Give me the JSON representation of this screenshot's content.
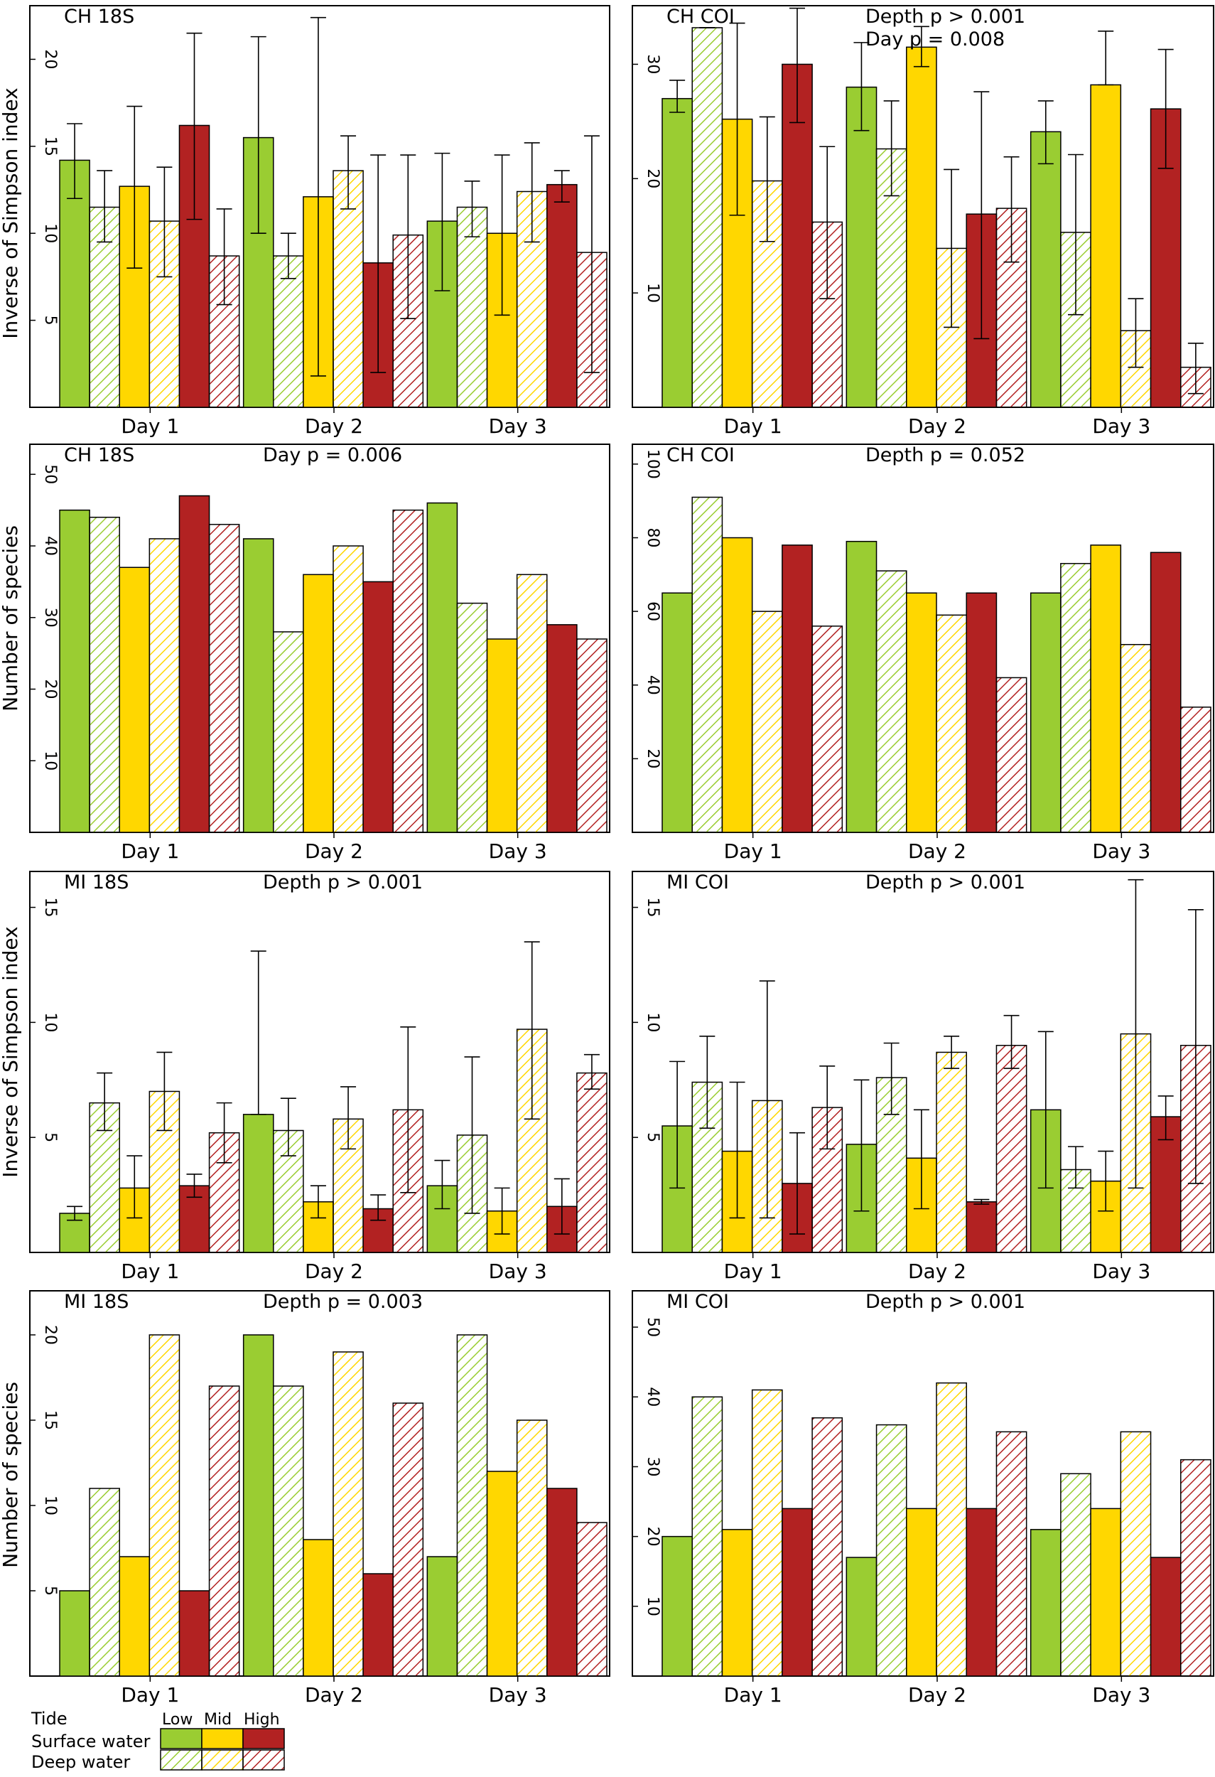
{
  "colors": {
    "low": "#9acd32",
    "mid": "#ffd700",
    "high": "#b22222",
    "background": "#ffffff",
    "axis": "#000000"
  },
  "legend": {
    "tide_label": "Tide",
    "low_label": "Low",
    "mid_label": "Mid",
    "high_label": "High",
    "surface_label": "Surface water",
    "deep_label": "Deep water"
  },
  "ylabels": {
    "simpson": "Inverse of Simpson index",
    "species": "Number of species"
  },
  "chart_data": [
    {
      "id": "ch18s-simpson",
      "type": "bar",
      "title": "CH 18S",
      "stats": [],
      "ylabel": "Inverse of Simpson index",
      "ylim": [
        0,
        23
      ],
      "ticks": [
        5,
        10,
        15,
        20
      ],
      "categories": [
        "Day 1",
        "Day 2",
        "Day 3"
      ],
      "series_order": [
        "Low surface",
        "Low deep",
        "Mid surface",
        "Mid deep",
        "High surface",
        "High deep"
      ],
      "values": [
        [
          14.2,
          11.5,
          12.7,
          10.7,
          16.2,
          8.7
        ],
        [
          15.5,
          8.7,
          12.1,
          13.6,
          8.3,
          9.9
        ],
        [
          10.7,
          11.5,
          10.0,
          12.4,
          12.8,
          8.9
        ]
      ],
      "error_low": [
        [
          12.0,
          9.5,
          8.0,
          7.5,
          10.8,
          5.9
        ],
        [
          10.0,
          7.4,
          1.8,
          11.4,
          2.0,
          5.1
        ],
        [
          6.7,
          9.8,
          5.3,
          9.5,
          11.8,
          2.0
        ]
      ],
      "error_high": [
        [
          16.3,
          13.6,
          17.3,
          13.8,
          21.5,
          11.4
        ],
        [
          21.3,
          10.0,
          22.4,
          15.6,
          14.5,
          14.5
        ],
        [
          14.6,
          13.0,
          14.5,
          15.2,
          13.6,
          15.6
        ]
      ]
    },
    {
      "id": "chcoi-simpson",
      "type": "bar",
      "title": "CH COI",
      "stats": [
        "Depth  p > 0.001",
        "Day    p = 0.008"
      ],
      "ylabel": "",
      "ylim": [
        0,
        35
      ],
      "ticks": [
        10,
        20,
        30
      ],
      "categories": [
        "Day 1",
        "Day 2",
        "Day 3"
      ],
      "series_order": [
        "Low surface",
        "Low deep",
        "Mid surface",
        "Mid deep",
        "High surface",
        "High deep"
      ],
      "values": [
        [
          27.0,
          33.2,
          25.2,
          19.8,
          30.0,
          16.2
        ],
        [
          28.0,
          22.6,
          31.5,
          13.9,
          16.9,
          17.4
        ],
        [
          24.1,
          15.3,
          28.2,
          6.7,
          26.1,
          3.5
        ]
      ],
      "error_low": [
        [
          25.8,
          33.2,
          16.8,
          14.5,
          24.9,
          9.5
        ],
        [
          24.2,
          18.5,
          29.8,
          7.0,
          6.0,
          12.7
        ],
        [
          21.3,
          8.1,
          28.2,
          3.5,
          20.9,
          1.2
        ]
      ],
      "error_high": [
        [
          28.6,
          33.2,
          33.6,
          25.4,
          34.9,
          22.8
        ],
        [
          31.9,
          26.8,
          33.3,
          20.8,
          27.6,
          21.9
        ],
        [
          26.8,
          22.1,
          32.9,
          9.5,
          31.3,
          5.6
        ]
      ]
    },
    {
      "id": "ch18s-species",
      "type": "bar",
      "title": "CH 18S",
      "stats": [
        "Day  p = 0.006"
      ],
      "ylabel": "Number of species",
      "ylim": [
        0,
        54
      ],
      "ticks": [
        10,
        20,
        30,
        40,
        50
      ],
      "categories": [
        "Day 1",
        "Day 2",
        "Day 3"
      ],
      "series_order": [
        "Low surface",
        "Low deep",
        "Mid surface",
        "Mid deep",
        "High surface",
        "High deep"
      ],
      "values": [
        [
          45,
          44,
          37,
          41,
          47,
          43
        ],
        [
          41,
          28,
          36,
          40,
          35,
          45
        ],
        [
          46,
          32,
          27,
          36,
          29,
          27
        ]
      ]
    },
    {
      "id": "chcoi-species",
      "type": "bar",
      "title": "CH COI",
      "stats": [
        "Depth  p = 0.052"
      ],
      "ylabel": "",
      "ylim": [
        0,
        105
      ],
      "ticks": [
        20,
        40,
        60,
        80,
        100
      ],
      "categories": [
        "Day 1",
        "Day 2",
        "Day 3"
      ],
      "series_order": [
        "Low surface",
        "Low deep",
        "Mid surface",
        "Mid deep",
        "High surface",
        "High deep"
      ],
      "values": [
        [
          65,
          91,
          80,
          60,
          78,
          56
        ],
        [
          79,
          71,
          65,
          59,
          65,
          42
        ],
        [
          65,
          73,
          78,
          51,
          76,
          34
        ]
      ]
    },
    {
      "id": "mi18s-simpson",
      "type": "bar",
      "title": "MI 18S",
      "stats": [
        "Depth p > 0.001"
      ],
      "ylabel": "Inverse of Simpson index",
      "ylim": [
        0,
        16.5
      ],
      "ticks": [
        5,
        10,
        15
      ],
      "categories": [
        "Day 1",
        "Day 2",
        "Day 3"
      ],
      "series_order": [
        "Low surface",
        "Low deep",
        "Mid surface",
        "Mid deep",
        "High surface",
        "High deep"
      ],
      "values": [
        [
          1.7,
          6.5,
          2.8,
          7.0,
          2.9,
          5.2
        ],
        [
          6.0,
          5.3,
          2.2,
          5.8,
          1.9,
          6.2
        ],
        [
          2.9,
          5.1,
          1.8,
          9.7,
          2.0,
          7.8
        ]
      ],
      "error_low": [
        [
          1.4,
          5.3,
          1.5,
          5.3,
          2.4,
          3.9
        ],
        [
          6.0,
          4.2,
          1.5,
          4.5,
          1.4,
          2.6
        ],
        [
          1.9,
          1.7,
          0.8,
          5.8,
          0.8,
          7.1
        ]
      ],
      "error_high": [
        [
          2.0,
          7.8,
          4.2,
          8.7,
          3.4,
          6.5
        ],
        [
          13.1,
          6.7,
          2.9,
          7.2,
          2.5,
          9.8
        ],
        [
          4.0,
          8.5,
          2.8,
          13.5,
          3.2,
          8.6
        ]
      ]
    },
    {
      "id": "micoi-simpson",
      "type": "bar",
      "title": "MI COI",
      "stats": [
        "Depth p > 0.001"
      ],
      "ylabel": "",
      "ylim": [
        0,
        16.5
      ],
      "ticks": [
        5,
        10,
        15
      ],
      "categories": [
        "Day 1",
        "Day 2",
        "Day 3"
      ],
      "series_order": [
        "Low surface",
        "Low deep",
        "Mid surface",
        "Mid deep",
        "High surface",
        "High deep"
      ],
      "values": [
        [
          5.5,
          7.4,
          4.4,
          6.6,
          3.0,
          6.3
        ],
        [
          4.7,
          7.6,
          4.1,
          8.7,
          2.2,
          9.0
        ],
        [
          6.2,
          3.6,
          3.1,
          9.5,
          5.9,
          9.0
        ]
      ],
      "error_low": [
        [
          2.8,
          5.4,
          1.5,
          1.5,
          0.8,
          4.5
        ],
        [
          1.8,
          6.0,
          1.9,
          8.0,
          2.1,
          8.0
        ],
        [
          2.8,
          2.8,
          1.8,
          2.8,
          4.9,
          3.0
        ]
      ],
      "error_high": [
        [
          8.3,
          9.4,
          7.4,
          11.8,
          5.2,
          8.1
        ],
        [
          7.5,
          9.1,
          6.2,
          9.4,
          2.3,
          10.3
        ],
        [
          9.6,
          4.6,
          4.4,
          16.2,
          6.8,
          14.9
        ]
      ]
    },
    {
      "id": "mi18s-species",
      "type": "bar",
      "title": "MI 18S",
      "stats": [
        "Depth p = 0.003"
      ],
      "ylabel": "Number of species",
      "ylim": [
        0,
        22.5
      ],
      "ticks": [
        5,
        10,
        15,
        20
      ],
      "categories": [
        "Day 1",
        "Day 2",
        "Day 3"
      ],
      "series_order": [
        "Low surface",
        "Low deep",
        "Mid surface",
        "Mid deep",
        "High surface",
        "High deep"
      ],
      "values": [
        [
          5,
          11,
          7,
          20,
          5,
          17
        ],
        [
          20,
          17,
          8,
          19,
          6,
          16
        ],
        [
          7,
          20,
          12,
          15,
          11,
          9
        ]
      ]
    },
    {
      "id": "micoi-species",
      "type": "bar",
      "title": "MI COI",
      "stats": [
        "Depth p > 0.001"
      ],
      "ylabel": "",
      "ylim": [
        0,
        55
      ],
      "ticks": [
        10,
        20,
        30,
        40,
        50
      ],
      "categories": [
        "Day 1",
        "Day 2",
        "Day 3"
      ],
      "series_order": [
        "Low surface",
        "Low deep",
        "Mid surface",
        "Mid deep",
        "High surface",
        "High deep"
      ],
      "values": [
        [
          20,
          40,
          21,
          41,
          24,
          37
        ],
        [
          17,
          36,
          24,
          42,
          24,
          35
        ],
        [
          21,
          29,
          24,
          35,
          17,
          31
        ]
      ]
    }
  ]
}
